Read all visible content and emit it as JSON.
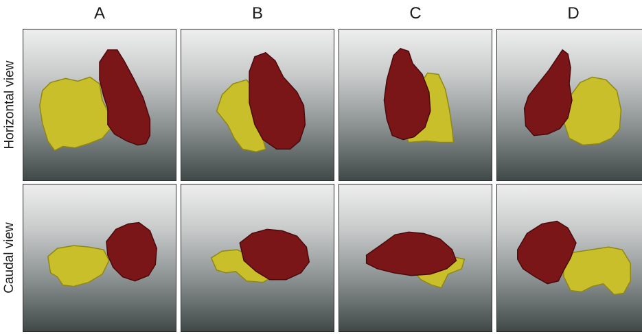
{
  "columns": [
    {
      "label": "A"
    },
    {
      "label": "B"
    },
    {
      "label": "C"
    },
    {
      "label": "D"
    }
  ],
  "rows": [
    {
      "label": "Horizontal view"
    },
    {
      "label": "Caudal view"
    }
  ],
  "colors": {
    "red_structure": "#7a1518",
    "yellow_structure": "#c9bf2a"
  }
}
